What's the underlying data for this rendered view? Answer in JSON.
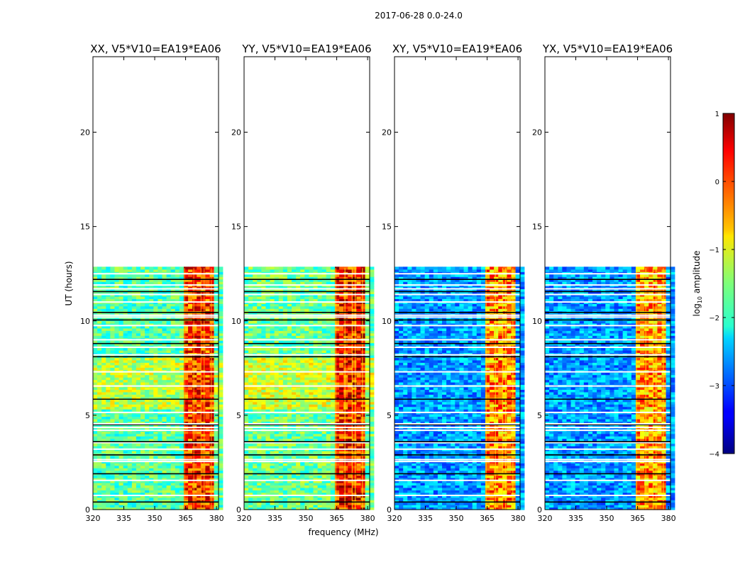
{
  "chart_data": {
    "type": "heatmap",
    "suptitle": "2017-06-28 0.0-24.0",
    "xlabel": "frequency (MHz)",
    "ylabel": "UT (hours)",
    "xlim": [
      320,
      381
    ],
    "ylim": [
      0,
      24
    ],
    "x_ticks": [
      320,
      335,
      350,
      365,
      380
    ],
    "y_ticks": [
      0,
      5,
      10,
      15,
      20
    ],
    "data_ut_range": [
      0,
      12.8
    ],
    "rfi_band_mhz": [
      363.5,
      378.5
    ],
    "rfi_channels_mhz": [
      364.5,
      369,
      372.5,
      374,
      377.5
    ],
    "flagged_ut_hours": [
      0.4,
      0.75,
      1.55,
      1.9,
      2.55,
      2.65,
      2.9,
      3.2,
      3.55,
      3.6,
      4.2,
      4.35,
      4.5,
      4.55,
      5.15,
      5.85,
      6.55,
      7.3,
      8.1,
      8.2,
      8.6,
      8.8,
      9.0,
      9.75,
      10.05,
      10.2,
      10.3,
      10.45,
      11.0,
      11.4,
      11.55,
      11.7,
      11.9,
      12.2,
      12.5
    ],
    "panels": [
      {
        "title": "XX, V5*V10=EA19*EA06",
        "off_band_level": -1.7,
        "band_level": 0.1
      },
      {
        "title": "YY, V5*V10=EA19*EA06",
        "off_band_level": -1.6,
        "band_level": 0.25
      },
      {
        "title": "XY, V5*V10=EA19*EA06",
        "off_band_level": -2.6,
        "band_level": -0.3
      },
      {
        "title": "YX, V5*V10=EA19*EA06",
        "off_band_level": -2.6,
        "band_level": -0.35
      }
    ],
    "colorbar": {
      "label": "log10 amplitude",
      "colormap": "jet",
      "min": -4,
      "max": 1,
      "ticks": [
        1,
        0,
        -1,
        -2,
        -3,
        -4
      ],
      "tick_labels": [
        "1",
        "0",
        "−1",
        "−2",
        "−3",
        "−4"
      ]
    }
  }
}
